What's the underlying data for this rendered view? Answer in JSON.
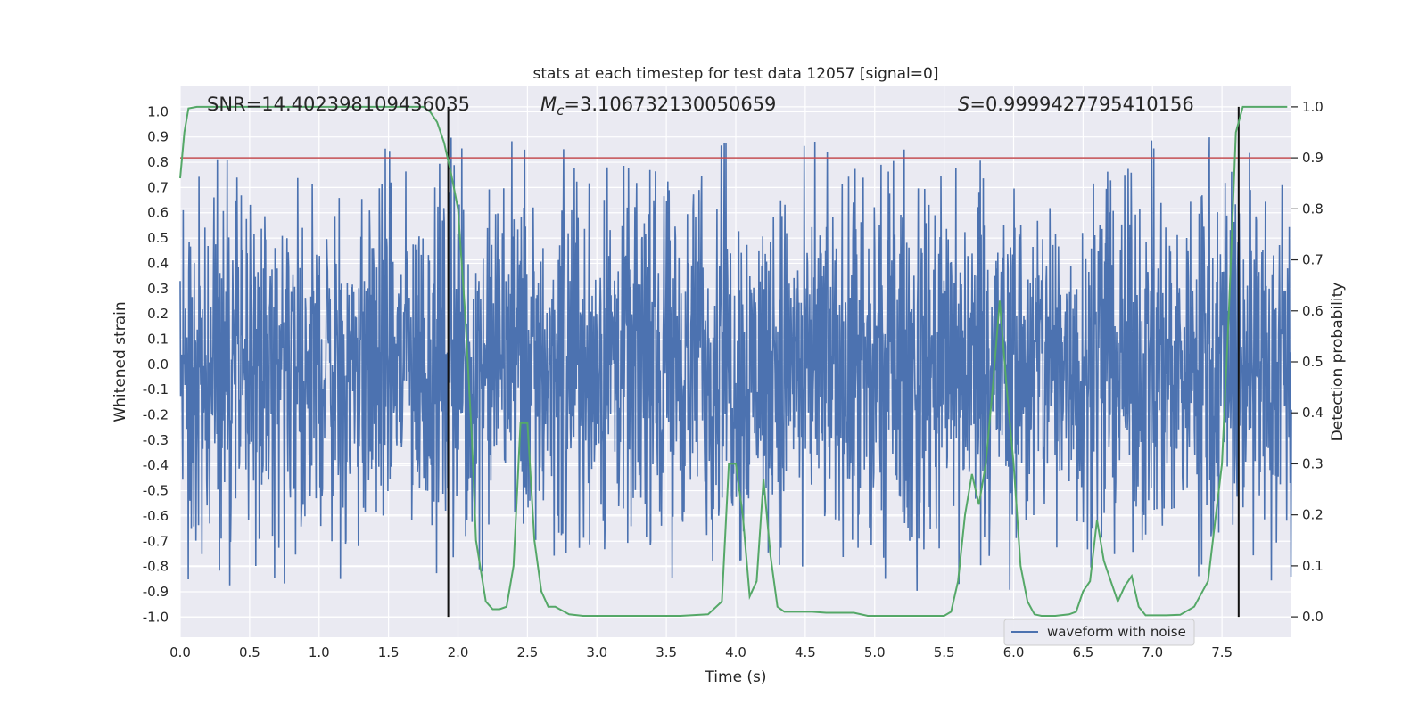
{
  "chart_data": {
    "type": "line",
    "title": "stats at each timestep for test data 12057 [signal=0]",
    "xlabel": "Time (s)",
    "ylabel_left": "Whitened strain",
    "ylabel_right": "Detection probability",
    "xlim": [
      0.0,
      8.0
    ],
    "ylim_left": [
      -1.08,
      1.1
    ],
    "ylim_right": [
      -0.04,
      1.04
    ],
    "x_ticks": [
      "0.0",
      "0.5",
      "1.0",
      "1.5",
      "2.0",
      "2.5",
      "3.0",
      "3.5",
      "4.0",
      "4.5",
      "5.0",
      "5.5",
      "6.0",
      "6.5",
      "7.0",
      "7.5"
    ],
    "y_left_ticks": [
      "1.0",
      "0.9",
      "0.8",
      "0.7",
      "0.6",
      "0.5",
      "0.4",
      "0.3",
      "0.2",
      "0.1",
      "0.0",
      "-0.1",
      "-0.2",
      "-0.3",
      "-0.4",
      "-0.5",
      "-0.6",
      "-0.7",
      "-0.8",
      "-0.9",
      "-1.0"
    ],
    "y_right_ticks": [
      "1.0",
      "0.9",
      "0.8",
      "0.7",
      "0.6",
      "0.5",
      "0.4",
      "0.3",
      "0.2",
      "0.1",
      "0.0"
    ],
    "grid": true,
    "annotations": {
      "snr": "SNR=14.402398109436035",
      "mc_symbol": "M",
      "mc_subscript": "c",
      "mc_value": "=3.106732130050659",
      "s_symbol": "S",
      "s_value": "=0.9999427795410156"
    },
    "threshold": {
      "value": 0.9,
      "axis": "right",
      "color": "#c44e52"
    },
    "vertical_markers": [
      1.93,
      7.62
    ],
    "legend": {
      "label": "waveform with noise",
      "location": "lower-right"
    },
    "waveform": {
      "name": "waveform with noise",
      "color": "#4c72b0",
      "typical_amplitude": 0.45,
      "peak_min": -0.98,
      "peak_max": 1.0,
      "x_start": 0.0,
      "x_end": 8.0
    },
    "probability_series": {
      "name": "Detection probability",
      "color": "#55a868",
      "x": [
        0.0,
        0.03,
        0.06,
        0.12,
        0.2,
        0.3,
        0.5,
        0.8,
        1.0,
        1.3,
        1.6,
        1.75,
        1.8,
        1.85,
        1.9,
        1.95,
        2.0,
        2.05,
        2.1,
        2.13,
        2.2,
        2.25,
        2.3,
        2.35,
        2.4,
        2.45,
        2.5,
        2.55,
        2.6,
        2.65,
        2.7,
        2.8,
        2.9,
        3.0,
        3.2,
        3.4,
        3.6,
        3.8,
        3.9,
        3.95,
        4.0,
        4.05,
        4.1,
        4.15,
        4.2,
        4.25,
        4.3,
        4.35,
        4.45,
        4.55,
        4.65,
        4.75,
        4.85,
        4.95,
        5.1,
        5.3,
        5.5,
        5.55,
        5.6,
        5.65,
        5.7,
        5.75,
        5.8,
        5.85,
        5.9,
        5.95,
        6.0,
        6.05,
        6.1,
        6.15,
        6.2,
        6.3,
        6.4,
        6.45,
        6.5,
        6.55,
        6.6,
        6.65,
        6.7,
        6.75,
        6.8,
        6.85,
        6.9,
        6.95,
        7.0,
        7.05,
        7.1,
        7.2,
        7.3,
        7.4,
        7.5,
        7.55,
        7.6,
        7.65,
        7.7,
        7.75,
        7.8,
        7.85,
        7.9,
        7.97
      ],
      "values": [
        0.86,
        0.95,
        0.997,
        1.0,
        1.0,
        1.0,
        1.0,
        1.0,
        1.0,
        1.0,
        1.0,
        1.0,
        0.99,
        0.97,
        0.93,
        0.87,
        0.8,
        0.6,
        0.35,
        0.15,
        0.03,
        0.015,
        0.015,
        0.02,
        0.1,
        0.38,
        0.38,
        0.15,
        0.05,
        0.02,
        0.02,
        0.005,
        0.002,
        0.002,
        0.002,
        0.002,
        0.002,
        0.005,
        0.03,
        0.3,
        0.3,
        0.2,
        0.04,
        0.07,
        0.27,
        0.12,
        0.02,
        0.01,
        0.01,
        0.01,
        0.008,
        0.008,
        0.008,
        0.002,
        0.002,
        0.002,
        0.002,
        0.01,
        0.07,
        0.2,
        0.28,
        0.22,
        0.3,
        0.45,
        0.62,
        0.45,
        0.3,
        0.1,
        0.03,
        0.005,
        0.002,
        0.002,
        0.005,
        0.01,
        0.05,
        0.07,
        0.19,
        0.11,
        0.07,
        0.03,
        0.06,
        0.08,
        0.02,
        0.003,
        0.003,
        0.003,
        0.003,
        0.004,
        0.02,
        0.07,
        0.3,
        0.6,
        0.95,
        1.0,
        1.0,
        1.0,
        1.0,
        1.0,
        1.0,
        1.0
      ]
    }
  }
}
